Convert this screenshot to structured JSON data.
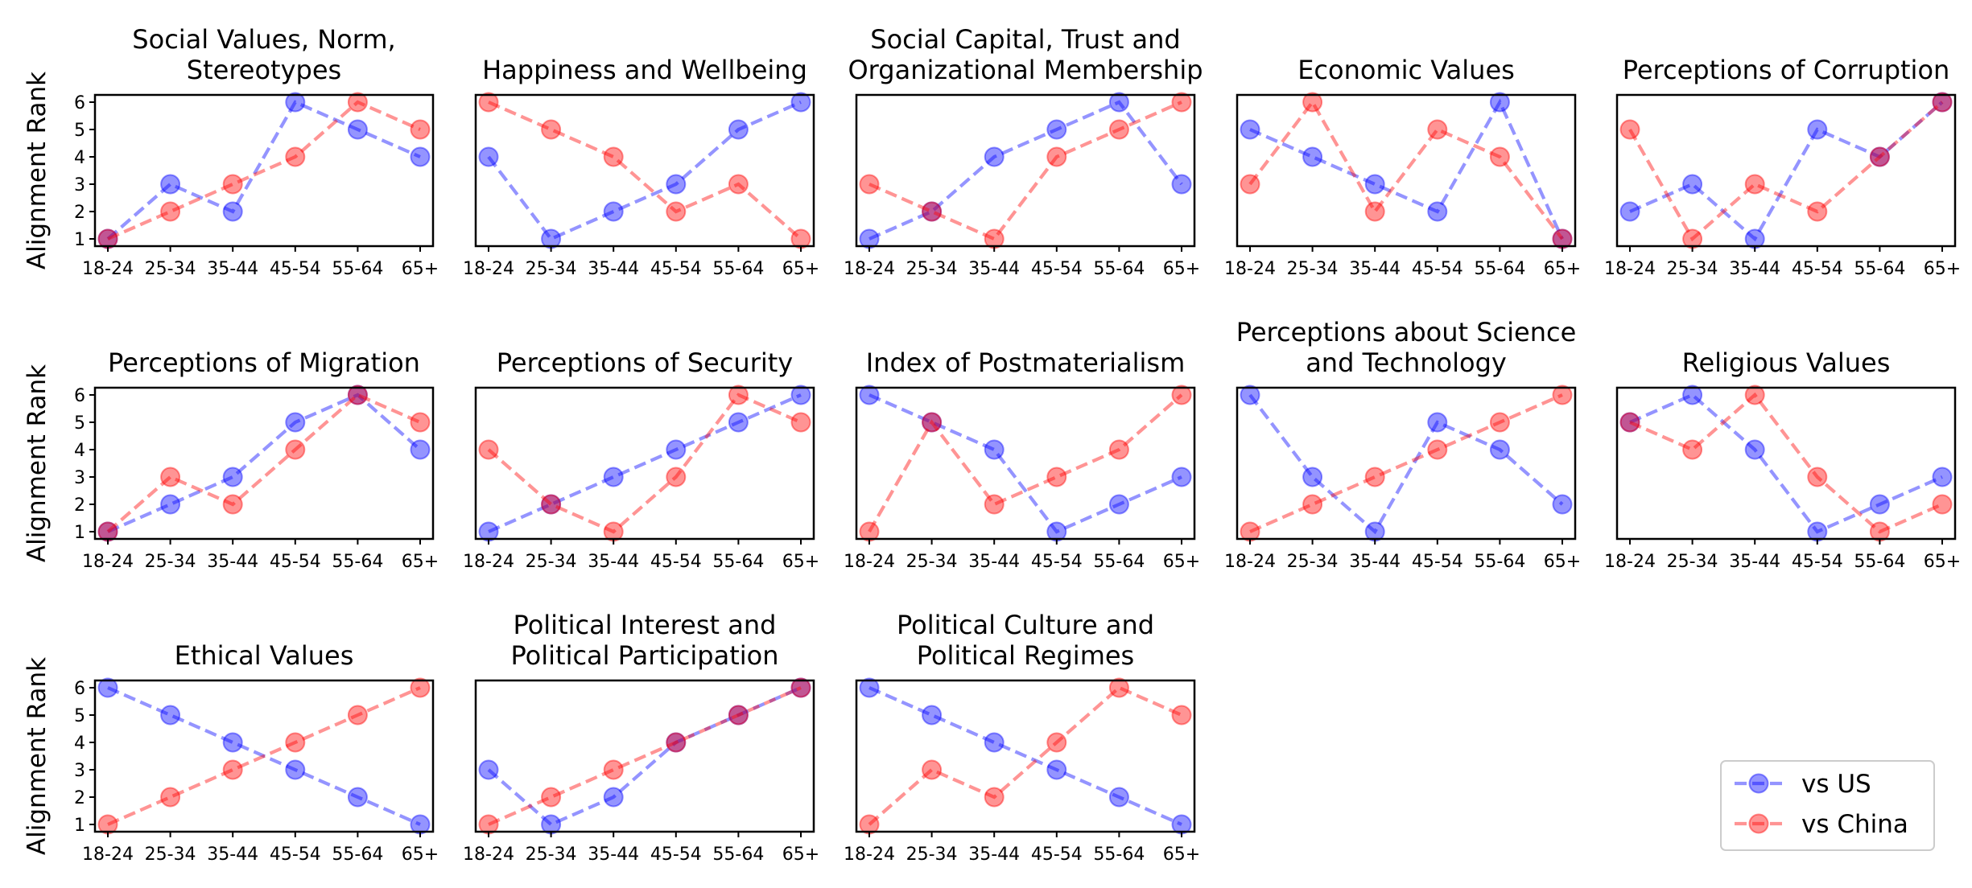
{
  "chart_data": {
    "type": "line",
    "ylabel": "Alignment Rank",
    "categories": [
      "18-24",
      "25-34",
      "35-44",
      "45-54",
      "55-64",
      "65+"
    ],
    "ylim": [
      1,
      6
    ],
    "yticks": [
      1,
      2,
      3,
      4,
      5,
      6
    ],
    "series_names": [
      "vs US",
      "vs China"
    ],
    "colors": {
      "vs US": "#0000ff",
      "vs China": "#ff0000"
    },
    "legend_position": "lower-right",
    "subplots": [
      {
        "title": "Social Values, Norm,\nStereotypes",
        "series": [
          {
            "name": "vs US",
            "values": [
              1,
              3,
              2,
              6,
              5,
              4
            ]
          },
          {
            "name": "vs China",
            "values": [
              1,
              2,
              3,
              4,
              6,
              5
            ]
          }
        ]
      },
      {
        "title": "Happiness and Wellbeing",
        "series": [
          {
            "name": "vs US",
            "values": [
              4,
              1,
              2,
              3,
              5,
              6
            ]
          },
          {
            "name": "vs China",
            "values": [
              6,
              5,
              4,
              2,
              3,
              1
            ]
          }
        ]
      },
      {
        "title": "Social Capital, Trust and\nOrganizational Membership",
        "series": [
          {
            "name": "vs US",
            "values": [
              1,
              2,
              4,
              5,
              6,
              3
            ]
          },
          {
            "name": "vs China",
            "values": [
              3,
              2,
              1,
              4,
              5,
              6
            ]
          }
        ]
      },
      {
        "title": "Economic Values",
        "series": [
          {
            "name": "vs US",
            "values": [
              5,
              4,
              3,
              2,
              6,
              1
            ]
          },
          {
            "name": "vs China",
            "values": [
              3,
              6,
              2,
              5,
              4,
              1
            ]
          }
        ]
      },
      {
        "title": "Perceptions of Corruption",
        "series": [
          {
            "name": "vs US",
            "values": [
              2,
              3,
              1,
              5,
              4,
              6
            ]
          },
          {
            "name": "vs China",
            "values": [
              5,
              1,
              3,
              2,
              4,
              6
            ]
          }
        ]
      },
      {
        "title": "Perceptions of Migration",
        "series": [
          {
            "name": "vs US",
            "values": [
              1,
              2,
              3,
              5,
              6,
              4
            ]
          },
          {
            "name": "vs China",
            "values": [
              1,
              3,
              2,
              4,
              6,
              5
            ]
          }
        ]
      },
      {
        "title": "Perceptions of Security",
        "series": [
          {
            "name": "vs US",
            "values": [
              1,
              2,
              3,
              4,
              5,
              6
            ]
          },
          {
            "name": "vs China",
            "values": [
              4,
              2,
              1,
              3,
              6,
              5
            ]
          }
        ]
      },
      {
        "title": "Index of Postmaterialism",
        "series": [
          {
            "name": "vs US",
            "values": [
              6,
              5,
              4,
              1,
              2,
              3
            ]
          },
          {
            "name": "vs China",
            "values": [
              1,
              5,
              2,
              3,
              4,
              6
            ]
          }
        ]
      },
      {
        "title": "Perceptions about Science\nand Technology",
        "series": [
          {
            "name": "vs US",
            "values": [
              6,
              3,
              1,
              5,
              4,
              2
            ]
          },
          {
            "name": "vs China",
            "values": [
              1,
              2,
              3,
              4,
              5,
              6
            ]
          }
        ]
      },
      {
        "title": "Religious Values",
        "series": [
          {
            "name": "vs US",
            "values": [
              5,
              6,
              4,
              1,
              2,
              3
            ]
          },
          {
            "name": "vs China",
            "values": [
              5,
              4,
              6,
              3,
              1,
              2
            ]
          }
        ]
      },
      {
        "title": "Ethical Values",
        "series": [
          {
            "name": "vs US",
            "values": [
              6,
              5,
              4,
              3,
              2,
              1
            ]
          },
          {
            "name": "vs China",
            "values": [
              1,
              2,
              3,
              4,
              5,
              6
            ]
          }
        ]
      },
      {
        "title": "Political Interest and\nPolitical Participation",
        "series": [
          {
            "name": "vs US",
            "values": [
              3,
              1,
              2,
              4,
              5,
              6
            ]
          },
          {
            "name": "vs China",
            "values": [
              1,
              2,
              3,
              4,
              5,
              6
            ]
          }
        ]
      },
      {
        "title": "Political Culture and\nPolitical Regimes",
        "series": [
          {
            "name": "vs US",
            "values": [
              6,
              5,
              4,
              3,
              2,
              1
            ]
          },
          {
            "name": "vs China",
            "values": [
              1,
              3,
              2,
              4,
              6,
              5
            ]
          }
        ]
      }
    ]
  }
}
